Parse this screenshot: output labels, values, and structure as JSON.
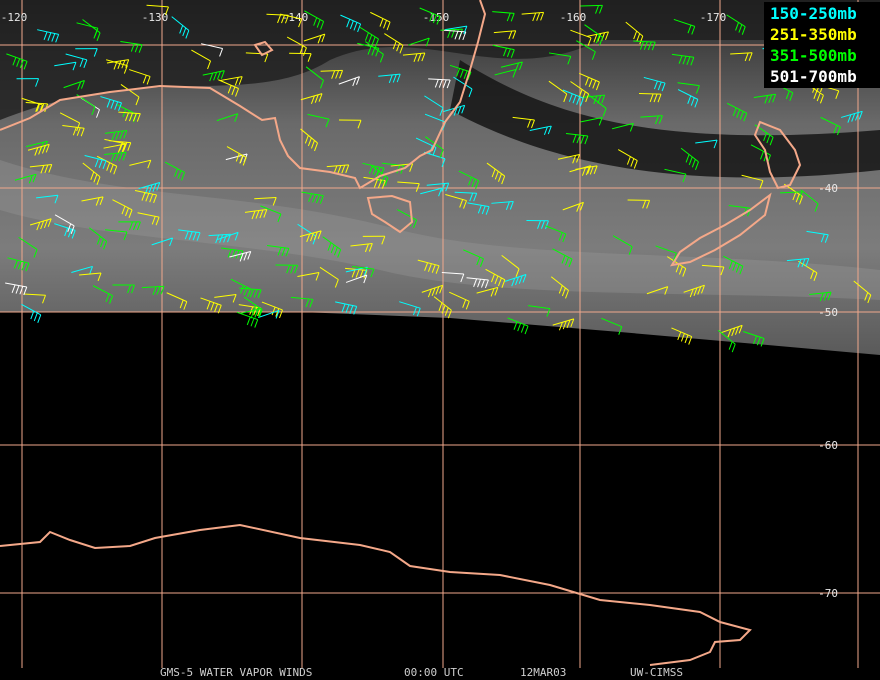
{
  "map": {
    "longitude_labels": [
      "-120",
      "-130",
      "-140",
      "-150",
      "-160",
      "-170"
    ],
    "latitude_labels": [
      "-40",
      "-50",
      "-60",
      "-70"
    ],
    "legend": [
      {
        "label": "150-250mb",
        "color": "#00ffff"
      },
      {
        "label": "251-350mb",
        "color": "#ffff00"
      },
      {
        "label": "351-500mb",
        "color": "#00ff00"
      },
      {
        "label": "501-700mb",
        "color": "#ffffff"
      }
    ],
    "footer": [
      "GMS-5 WATER VAPOR WINDS",
      "00:00 UTC",
      "12MAR03",
      "UW-CIMSS"
    ]
  }
}
